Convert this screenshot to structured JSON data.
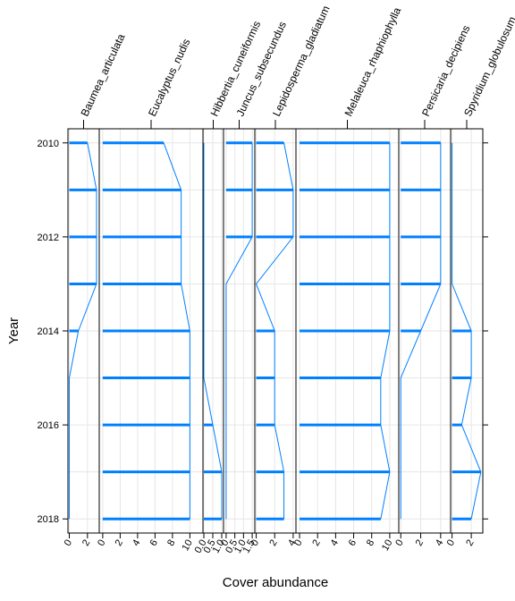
{
  "chart_data": {
    "type": "dotplot-panels",
    "xlabel": "Cover abundance",
    "ylabel": "Year",
    "y_ticks": [
      2010,
      2012,
      2014,
      2016,
      2018
    ],
    "ylim": [
      2009.7,
      2018.3
    ],
    "colors": {
      "data": "#0080ff",
      "grid": "#e6e6e6",
      "frame": "#000000"
    },
    "years": [
      2010,
      2011,
      2012,
      2013,
      2014,
      2015,
      2016,
      2017,
      2018
    ],
    "panels": [
      {
        "name": "Baumea_articulata",
        "xlim": [
          -0.15,
          3.3
        ],
        "ticks": [
          0,
          2
        ],
        "tick_labels": [
          "0",
          "2"
        ],
        "values": [
          2,
          3,
          3,
          3,
          1,
          0,
          0,
          0,
          0
        ]
      },
      {
        "name": "Eucalyptus_nudis",
        "xlim": [
          -0.4,
          11.5
        ],
        "ticks": [
          0,
          2,
          4,
          6,
          8,
          10
        ],
        "tick_labels": [
          "0",
          "2",
          "4",
          "6",
          "8",
          "10"
        ],
        "values": [
          7,
          9,
          9,
          9,
          10,
          10,
          10,
          10,
          10
        ]
      },
      {
        "name": "Hibbertia_cuneiformis",
        "xlim": [
          -0.05,
          1.1
        ],
        "ticks": [
          0,
          0.5,
          1
        ],
        "tick_labels": [
          "0.0",
          "0.5",
          "1.0"
        ],
        "values": [
          0,
          0,
          0,
          0,
          0,
          0,
          0.5,
          1,
          1
        ]
      },
      {
        "name": "Juncus_subsecundus",
        "xlim": [
          -0.15,
          1.65
        ],
        "ticks": [
          0,
          0.5,
          1,
          1.5
        ],
        "tick_labels": [
          "0",
          "0.5",
          "1.0",
          "1.5"
        ],
        "values": [
          1.5,
          1.5,
          1.5,
          0,
          0,
          0,
          0,
          0,
          0
        ]
      },
      {
        "name": "Lepidosperma_gladiatum",
        "xlim": [
          -0.15,
          4.3
        ],
        "ticks": [
          0,
          2,
          4
        ],
        "tick_labels": [
          "0",
          "2",
          "4"
        ],
        "values": [
          3,
          4,
          4,
          0,
          2,
          2,
          2,
          3,
          3
        ]
      },
      {
        "name": "Melaleuca_rhaphiophylla",
        "xlim": [
          -0.4,
          11.0
        ],
        "ticks": [
          0,
          2,
          4,
          6,
          8,
          10
        ],
        "tick_labels": [
          "0",
          "2",
          "4",
          "6",
          "8",
          "10"
        ],
        "values": [
          10,
          10,
          10,
          10,
          10,
          9,
          9,
          10,
          9
        ]
      },
      {
        "name": "Persicaria_decipiens",
        "xlim": [
          -0.2,
          5.0
        ],
        "ticks": [
          0,
          2,
          4
        ],
        "tick_labels": [
          "0",
          "2",
          "4"
        ],
        "values": [
          4,
          4,
          4,
          4,
          2,
          0,
          0,
          0,
          0
        ]
      },
      {
        "name": "Spyridium_globulosum",
        "xlim": [
          -0.15,
          3.2
        ],
        "ticks": [
          0,
          2
        ],
        "tick_labels": [
          "0",
          "2"
        ],
        "values": [
          0,
          0,
          0,
          0,
          2,
          2,
          1,
          3,
          2
        ]
      }
    ]
  }
}
